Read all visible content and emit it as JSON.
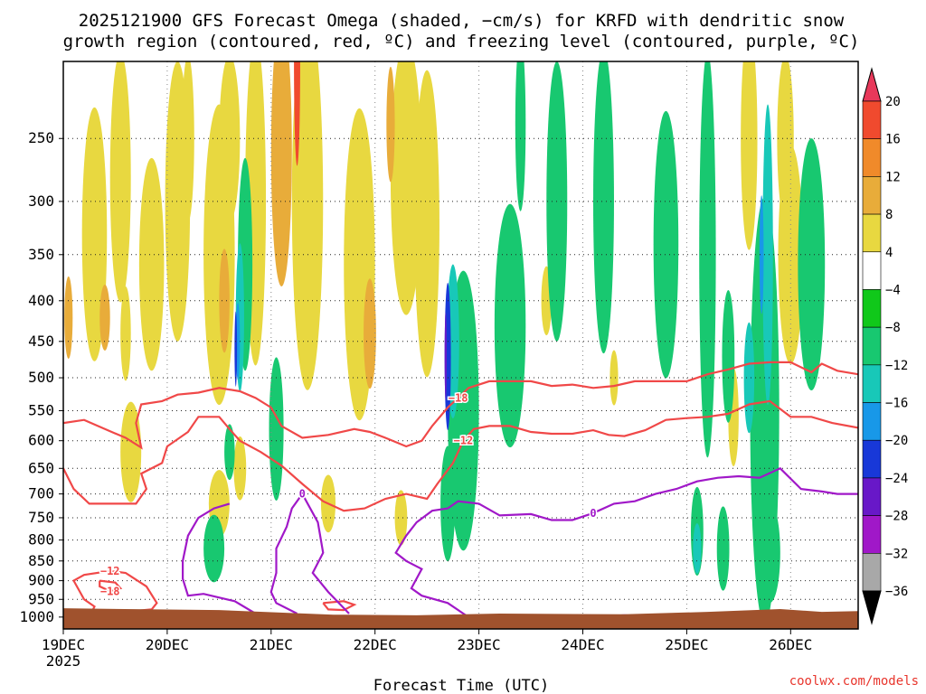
{
  "chart_data": {
    "type": "heatmap",
    "title_line1": "2025121900 GFS Forecast Omega (shaded, −cm/s) for KRFD with dendritic snow",
    "title_line2": "growth region (contoured, red, ºC) and freezing level (contoured, purple, ºC)",
    "xlabel": "Forecast Time (UTC)",
    "credit": "coolwx.com/models",
    "x_ticks": [
      "19DEC",
      "20DEC",
      "21DEC",
      "22DEC",
      "23DEC",
      "24DEC",
      "25DEC",
      "26DEC"
    ],
    "x_year_label": "2025",
    "xlim_days": [
      0,
      7.65
    ],
    "y_ticks": [
      250,
      300,
      350,
      400,
      450,
      500,
      550,
      600,
      650,
      700,
      750,
      800,
      850,
      900,
      950,
      1000
    ],
    "y_tick_labels": [
      "250",
      "300",
      "350",
      "400",
      "450",
      "500",
      "550",
      "600",
      "650",
      "700",
      "750",
      "800",
      "850",
      "900",
      "950",
      "1000"
    ],
    "ylim_hpa": [
      200,
      1035
    ],
    "colorbar": {
      "labels": [
        "20",
        "16",
        "12",
        "8",
        "4",
        "−4",
        "−8",
        "−12",
        "−16",
        "−20",
        "−24",
        "−28",
        "−32",
        "−36"
      ],
      "colors": [
        "#e8385a",
        "#f04a2e",
        "#f08a2a",
        "#e8ac3a",
        "#e8d840",
        "#ffffff",
        "#10c81a",
        "#18c870",
        "#18c8b8",
        "#1898e8",
        "#1838d8",
        "#6818c8",
        "#a018c8",
        "#a8a8a8",
        "#000000"
      ]
    },
    "contours": [
      {
        "label": "−18",
        "color": "#f04848",
        "kind": "dendritic",
        "points": [
          [
            0,
            570
          ],
          [
            0.2,
            565
          ],
          [
            0.4,
            580
          ],
          [
            0.6,
            595
          ],
          [
            0.75,
            612
          ],
          [
            0.7,
            570
          ],
          [
            0.75,
            540
          ],
          [
            0.95,
            535
          ],
          [
            1.1,
            525
          ],
          [
            1.3,
            522
          ],
          [
            1.5,
            515
          ],
          [
            1.7,
            520
          ],
          [
            1.85,
            530
          ],
          [
            2.0,
            545
          ],
          [
            2.1,
            575
          ],
          [
            2.3,
            595
          ],
          [
            2.55,
            590
          ],
          [
            2.8,
            580
          ],
          [
            2.95,
            585
          ],
          [
            3.1,
            595
          ],
          [
            3.3,
            610
          ],
          [
            3.45,
            600
          ],
          [
            3.55,
            575
          ],
          [
            3.7,
            545
          ],
          [
            3.8,
            530
          ],
          [
            3.9,
            515
          ],
          [
            4.1,
            505
          ],
          [
            4.3,
            505
          ],
          [
            4.5,
            505
          ],
          [
            4.7,
            512
          ],
          [
            4.9,
            510
          ],
          [
            5.1,
            515
          ],
          [
            5.3,
            512
          ],
          [
            5.5,
            505
          ],
          [
            5.7,
            505
          ],
          [
            6.0,
            505
          ],
          [
            6.2,
            495
          ],
          [
            6.4,
            488
          ],
          [
            6.6,
            480
          ],
          [
            6.8,
            478
          ],
          [
            7.0,
            478
          ],
          [
            7.2,
            492
          ],
          [
            7.3,
            480
          ],
          [
            7.45,
            490
          ],
          [
            7.65,
            495
          ]
        ]
      },
      {
        "label": "−12",
        "color": "#f04848",
        "kind": "dendritic",
        "points": [
          [
            0,
            650
          ],
          [
            0.1,
            690
          ],
          [
            0.25,
            720
          ],
          [
            0.5,
            720
          ],
          [
            0.7,
            720
          ],
          [
            0.8,
            690
          ],
          [
            0.75,
            660
          ],
          [
            0.95,
            640
          ],
          [
            1.0,
            610
          ],
          [
            1.2,
            585
          ],
          [
            1.3,
            560
          ],
          [
            1.5,
            560
          ],
          [
            1.6,
            580
          ],
          [
            1.7,
            600
          ],
          [
            1.9,
            620
          ],
          [
            2.1,
            645
          ],
          [
            2.3,
            680
          ],
          [
            2.5,
            715
          ],
          [
            2.7,
            735
          ],
          [
            2.9,
            730
          ],
          [
            3.1,
            710
          ],
          [
            3.3,
            700
          ],
          [
            3.5,
            710
          ],
          [
            3.6,
            680
          ],
          [
            3.75,
            640
          ],
          [
            3.85,
            600
          ],
          [
            3.95,
            580
          ],
          [
            4.1,
            575
          ],
          [
            4.3,
            575
          ],
          [
            4.5,
            585
          ],
          [
            4.7,
            588
          ],
          [
            4.9,
            588
          ],
          [
            5.1,
            582
          ],
          [
            5.25,
            590
          ],
          [
            5.4,
            592
          ],
          [
            5.6,
            582
          ],
          [
            5.8,
            565
          ],
          [
            6.0,
            562
          ],
          [
            6.2,
            560
          ],
          [
            6.4,
            555
          ],
          [
            6.6,
            540
          ],
          [
            6.8,
            535
          ],
          [
            7.0,
            560
          ],
          [
            7.2,
            560
          ],
          [
            7.4,
            570
          ],
          [
            7.65,
            578
          ]
        ]
      },
      {
        "label": "−12",
        "color": "#f04848",
        "kind": "dendritic",
        "points": [
          [
            0.25,
            1000
          ],
          [
            0.6,
            985
          ],
          [
            0.85,
            978
          ],
          [
            0.9,
            960
          ],
          [
            0.8,
            915
          ],
          [
            0.6,
            880
          ],
          [
            0.45,
            875
          ],
          [
            0.2,
            885
          ],
          [
            0.1,
            900
          ],
          [
            0.2,
            950
          ],
          [
            0.3,
            970
          ],
          [
            0.25,
            1000
          ]
        ]
      },
      {
        "label": "−18",
        "color": "#f04848",
        "kind": "dendritic",
        "points": [
          [
            0.35,
            900
          ],
          [
            0.5,
            905
          ],
          [
            0.55,
            920
          ],
          [
            0.45,
            928
          ],
          [
            0.35,
            915
          ],
          [
            0.35,
            900
          ]
        ]
      },
      {
        "label": "",
        "color": "#f04848",
        "kind": "dendritic",
        "points": [
          [
            2.5,
            960
          ],
          [
            2.7,
            955
          ],
          [
            2.8,
            965
          ],
          [
            2.7,
            980
          ],
          [
            2.55,
            978
          ],
          [
            2.5,
            960
          ]
        ]
      },
      {
        "label": "0",
        "color": "#a018c8",
        "kind": "freezing",
        "points": [
          [
            2.25,
            990
          ],
          [
            2.05,
            960
          ],
          [
            2.0,
            930
          ],
          [
            2.05,
            880
          ],
          [
            2.05,
            820
          ],
          [
            2.15,
            770
          ],
          [
            2.2,
            730
          ],
          [
            2.3,
            700
          ],
          [
            2.45,
            760
          ],
          [
            2.5,
            830
          ],
          [
            2.4,
            880
          ],
          [
            2.55,
            930
          ],
          [
            2.75,
            990
          ]
        ]
      },
      {
        "label": "",
        "color": "#a018c8",
        "kind": "freezing",
        "points": [
          [
            1.85,
            990
          ],
          [
            1.65,
            955
          ],
          [
            1.35,
            935
          ],
          [
            1.2,
            940
          ],
          [
            1.15,
            895
          ],
          [
            1.15,
            850
          ],
          [
            1.2,
            790
          ],
          [
            1.3,
            750
          ],
          [
            1.45,
            730
          ],
          [
            1.6,
            720
          ]
        ]
      },
      {
        "label": "0",
        "color": "#a018c8",
        "kind": "freezing",
        "points": [
          [
            3.9,
            1000
          ],
          [
            3.7,
            960
          ],
          [
            3.45,
            940
          ],
          [
            3.35,
            920
          ],
          [
            3.45,
            870
          ],
          [
            3.3,
            850
          ],
          [
            3.2,
            830
          ],
          [
            3.3,
            790
          ],
          [
            3.4,
            760
          ],
          [
            3.55,
            735
          ],
          [
            3.7,
            730
          ],
          [
            3.8,
            715
          ],
          [
            4.0,
            720
          ],
          [
            4.2,
            745
          ],
          [
            4.5,
            742
          ],
          [
            4.7,
            755
          ],
          [
            4.9,
            755
          ],
          [
            5.1,
            740
          ],
          [
            5.3,
            720
          ],
          [
            5.5,
            715
          ],
          [
            5.7,
            700
          ],
          [
            5.9,
            690
          ],
          [
            6.1,
            675
          ],
          [
            6.3,
            668
          ],
          [
            6.5,
            665
          ],
          [
            6.7,
            668
          ],
          [
            6.9,
            650
          ],
          [
            7.1,
            690
          ],
          [
            7.3,
            695
          ],
          [
            7.45,
            700
          ],
          [
            7.65,
            700
          ]
        ]
      },
      {
        "label": "",
        "color": "#a018c8",
        "kind": "freezing",
        "points": [
          [
            5.1,
            1000
          ],
          [
            5.4,
            995
          ],
          [
            5.7,
            1000
          ]
        ]
      }
    ],
    "omega_patches": [
      {
        "cx": 0.3,
        "cy": 330,
        "rx": 0.12,
        "ry": 120,
        "v": 4
      },
      {
        "cx": 0.55,
        "cy": 280,
        "rx": 0.1,
        "ry": 100,
        "v": 4
      },
      {
        "cx": 0.65,
        "cy": 620,
        "rx": 0.1,
        "ry": 90,
        "v": 4
      },
      {
        "cx": 0.85,
        "cy": 360,
        "rx": 0.12,
        "ry": 110,
        "v": 4
      },
      {
        "cx": 1.1,
        "cy": 300,
        "rx": 0.12,
        "ry": 120,
        "v": 4
      },
      {
        "cx": 1.5,
        "cy": 350,
        "rx": 0.15,
        "ry": 150,
        "v": 4
      },
      {
        "cx": 1.85,
        "cy": 300,
        "rx": 0.1,
        "ry": 140,
        "v": 4
      },
      {
        "cx": 2.1,
        "cy": 260,
        "rx": 0.1,
        "ry": 100,
        "v": 8
      },
      {
        "cx": 2.35,
        "cy": 300,
        "rx": 0.15,
        "ry": 160,
        "v": 4
      },
      {
        "cx": 2.85,
        "cy": 360,
        "rx": 0.15,
        "ry": 160,
        "v": 4
      },
      {
        "cx": 3.3,
        "cy": 280,
        "rx": 0.15,
        "ry": 110,
        "v": 4
      },
      {
        "cx": 3.5,
        "cy": 320,
        "rx": 0.12,
        "ry": 140,
        "v": 4
      },
      {
        "cx": 0.4,
        "cy": 420,
        "rx": 0.05,
        "ry": 40,
        "v": 8
      },
      {
        "cx": 1.55,
        "cy": 400,
        "rx": 0.05,
        "ry": 60,
        "v": 8
      },
      {
        "cx": 2.25,
        "cy": 200,
        "rx": 0.03,
        "ry": 60,
        "v": 16
      },
      {
        "cx": 2.95,
        "cy": 440,
        "rx": 0.06,
        "ry": 70,
        "v": 8
      },
      {
        "cx": 3.15,
        "cy": 240,
        "rx": 0.04,
        "ry": 40,
        "v": 8
      },
      {
        "cx": 7.0,
        "cy": 350,
        "rx": 0.12,
        "ry": 110,
        "v": 4
      },
      {
        "cx": 6.45,
        "cy": 560,
        "rx": 0.05,
        "ry": 80,
        "v": 4
      },
      {
        "cx": 1.6,
        "cy": 250,
        "rx": 0.1,
        "ry": 60,
        "v": 4
      },
      {
        "cx": 1.2,
        "cy": 250,
        "rx": 0.06,
        "ry": 60,
        "v": 4
      },
      {
        "cx": 1.5,
        "cy": 720,
        "rx": 0.1,
        "ry": 70,
        "v": 4
      },
      {
        "cx": 0.6,
        "cy": 440,
        "rx": 0.05,
        "ry": 60,
        "v": 4
      },
      {
        "cx": 2.55,
        "cy": 720,
        "rx": 0.07,
        "ry": 60,
        "v": 4
      },
      {
        "cx": 3.25,
        "cy": 750,
        "rx": 0.06,
        "ry": 60,
        "v": 4
      },
      {
        "cx": 6.6,
        "cy": 250,
        "rx": 0.08,
        "ry": 80,
        "v": 4
      },
      {
        "cx": 6.95,
        "cy": 250,
        "rx": 0.08,
        "ry": 60,
        "v": 4
      },
      {
        "cx": 0.05,
        "cy": 420,
        "rx": 0.04,
        "ry": 50,
        "v": 8
      },
      {
        "cx": 1.7,
        "cy": 650,
        "rx": 0.06,
        "ry": 60,
        "v": 4
      },
      {
        "cx": 4.65,
        "cy": 400,
        "rx": 0.05,
        "ry": 40,
        "v": 4
      },
      {
        "cx": 5.3,
        "cy": 500,
        "rx": 0.04,
        "ry": 40,
        "v": 4
      },
      {
        "cx": 4.25,
        "cy": 520,
        "rx": 0.04,
        "ry": 40,
        "v": 4
      },
      {
        "cx": 1.45,
        "cy": 820,
        "rx": 0.1,
        "ry": 80,
        "v": -8
      },
      {
        "cx": 1.75,
        "cy": 360,
        "rx": 0.07,
        "ry": 110,
        "v": -8
      },
      {
        "cx": 2.05,
        "cy": 580,
        "rx": 0.07,
        "ry": 120,
        "v": -8
      },
      {
        "cx": 3.85,
        "cy": 550,
        "rx": 0.15,
        "ry": 220,
        "v": -8
      },
      {
        "cx": 4.3,
        "cy": 430,
        "rx": 0.15,
        "ry": 150,
        "v": -8
      },
      {
        "cx": 4.75,
        "cy": 300,
        "rx": 0.1,
        "ry": 120,
        "v": -8
      },
      {
        "cx": 5.2,
        "cy": 300,
        "rx": 0.1,
        "ry": 130,
        "v": -8
      },
      {
        "cx": 5.8,
        "cy": 340,
        "rx": 0.12,
        "ry": 130,
        "v": -8
      },
      {
        "cx": 6.2,
        "cy": 350,
        "rx": 0.08,
        "ry": 200,
        "v": -8
      },
      {
        "cx": 6.4,
        "cy": 470,
        "rx": 0.06,
        "ry": 90,
        "v": -8
      },
      {
        "cx": 6.75,
        "cy": 550,
        "rx": 0.14,
        "ry": 330,
        "v": -8
      },
      {
        "cx": 7.2,
        "cy": 360,
        "rx": 0.13,
        "ry": 130,
        "v": -8
      },
      {
        "cx": 6.1,
        "cy": 780,
        "rx": 0.06,
        "ry": 100,
        "v": -8
      },
      {
        "cx": 6.35,
        "cy": 820,
        "rx": 0.06,
        "ry": 100,
        "v": -8
      },
      {
        "cx": 6.8,
        "cy": 830,
        "rx": 0.1,
        "ry": 120,
        "v": -8
      },
      {
        "cx": 1.6,
        "cy": 620,
        "rx": 0.05,
        "ry": 50,
        "v": -8
      },
      {
        "cx": 3.7,
        "cy": 720,
        "rx": 0.07,
        "ry": 120,
        "v": -8
      },
      {
        "cx": 4.4,
        "cy": 240,
        "rx": 0.05,
        "ry": 60,
        "v": -8
      },
      {
        "cx": 3.75,
        "cy": 450,
        "rx": 0.06,
        "ry": 100,
        "v": -12
      },
      {
        "cx": 6.78,
        "cy": 350,
        "rx": 0.05,
        "ry": 150,
        "v": -12
      },
      {
        "cx": 6.6,
        "cy": 500,
        "rx": 0.05,
        "ry": 80,
        "v": -12
      },
      {
        "cx": 6.1,
        "cy": 820,
        "rx": 0.04,
        "ry": 60,
        "v": -12
      },
      {
        "cx": 1.7,
        "cy": 420,
        "rx": 0.04,
        "ry": 90,
        "v": -12
      },
      {
        "cx": 6.72,
        "cy": 350,
        "rx": 0.02,
        "ry": 60,
        "v": -16
      },
      {
        "cx": 1.68,
        "cy": 450,
        "rx": 0.02,
        "ry": 50,
        "v": -16
      },
      {
        "cx": 3.7,
        "cy": 470,
        "rx": 0.03,
        "ry": 100,
        "v": -20
      },
      {
        "cx": 1.66,
        "cy": 460,
        "rx": 0.012,
        "ry": 50,
        "v": -20
      },
      {
        "cx": 3.68,
        "cy": 470,
        "rx": 0.01,
        "ry": 60,
        "v": -24
      }
    ],
    "ground": {
      "color": "#a0522d",
      "surface_hpa": [
        [
          0,
          975
        ],
        [
          1.5,
          980
        ],
        [
          2.6,
          993
        ],
        [
          3.4,
          995
        ],
        [
          4.2,
          990
        ],
        [
          5.4,
          992
        ],
        [
          6.2,
          985
        ],
        [
          6.9,
          977
        ],
        [
          7.3,
          985
        ],
        [
          7.65,
          983
        ]
      ]
    }
  }
}
